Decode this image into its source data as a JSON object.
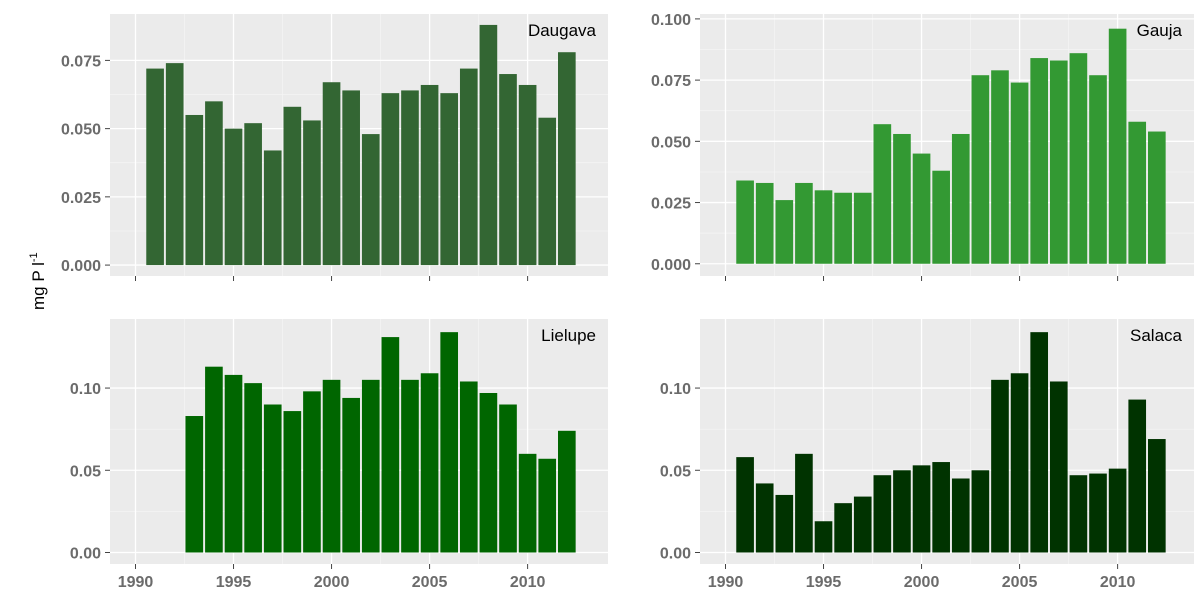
{
  "y_axis_label": {
    "main": "mg P l",
    "superscript": "-1"
  },
  "chart_data": [
    {
      "type": "bar",
      "title": "Daugava",
      "color": "#336633",
      "x": [
        1991,
        1992,
        1993,
        1994,
        1995,
        1996,
        1997,
        1998,
        1999,
        2000,
        2001,
        2002,
        2003,
        2004,
        2005,
        2006,
        2007,
        2008,
        2009,
        2010,
        2011,
        2012
      ],
      "values": [
        0.072,
        0.074,
        0.055,
        0.06,
        0.05,
        0.052,
        0.042,
        0.058,
        0.053,
        0.067,
        0.064,
        0.048,
        0.063,
        0.064,
        0.066,
        0.063,
        0.072,
        0.088,
        0.07,
        0.066,
        0.054,
        0.078
      ],
      "yticks": [
        "0.000",
        "0.025",
        "0.050",
        "0.075"
      ],
      "ytick_values": [
        0,
        0.025,
        0.05,
        0.075
      ],
      "ylim": [
        -0.004,
        0.092
      ],
      "xlim": [
        1988.7,
        2014.1
      ],
      "xticks": [
        1990,
        1995,
        2000,
        2005,
        2010
      ],
      "xtick_labels": []
    },
    {
      "type": "bar",
      "title": "Gauja",
      "color": "#339933",
      "x": [
        1991,
        1992,
        1993,
        1994,
        1995,
        1996,
        1997,
        1998,
        1999,
        2000,
        2001,
        2002,
        2003,
        2004,
        2005,
        2006,
        2007,
        2008,
        2009,
        2010,
        2011,
        2012
      ],
      "values": [
        0.034,
        0.033,
        0.026,
        0.033,
        0.03,
        0.029,
        0.029,
        0.057,
        0.053,
        0.045,
        0.038,
        0.053,
        0.077,
        0.079,
        0.074,
        0.084,
        0.083,
        0.086,
        0.077,
        0.096,
        0.058,
        0.054
      ],
      "yticks": [
        "0.000",
        "0.025",
        "0.050",
        "0.075",
        "0.100"
      ],
      "ytick_values": [
        0,
        0.025,
        0.05,
        0.075,
        0.1
      ],
      "ylim": [
        -0.005,
        0.102
      ],
      "xlim": [
        1988.7,
        2014.1
      ],
      "xticks": [
        1990,
        1995,
        2000,
        2005,
        2010
      ],
      "xtick_labels": []
    },
    {
      "type": "bar",
      "title": "Lielupe",
      "color": "#006600",
      "x": [
        1993,
        1994,
        1995,
        1996,
        1997,
        1998,
        1999,
        2000,
        2001,
        2002,
        2003,
        2004,
        2005,
        2006,
        2007,
        2008,
        2009,
        2010,
        2011,
        2012
      ],
      "values": [
        0.083,
        0.113,
        0.108,
        0.103,
        0.09,
        0.086,
        0.098,
        0.105,
        0.094,
        0.105,
        0.131,
        0.105,
        0.109,
        0.134,
        0.104,
        0.097,
        0.09,
        0.06,
        0.057,
        0.074
      ],
      "yticks": [
        "0.00",
        "0.05",
        "0.10"
      ],
      "ytick_values": [
        0,
        0.05,
        0.1
      ],
      "ylim": [
        -0.007,
        0.142
      ],
      "xlim": [
        1988.7,
        2014.1
      ],
      "xticks": [
        1990,
        1995,
        2000,
        2005,
        2010
      ],
      "xtick_labels": [
        "1990",
        "1995",
        "2000",
        "2005",
        "2010"
      ]
    },
    {
      "type": "bar",
      "title": "Salaca",
      "color": "#003300",
      "x": [
        1991,
        1992,
        1993,
        1994,
        1995,
        1996,
        1997,
        1998,
        1999,
        2000,
        2001,
        2002,
        2003,
        2004,
        2005,
        2006,
        2007,
        2008,
        2009,
        2010,
        2011,
        2012
      ],
      "values": [
        0.058,
        0.042,
        0.035,
        0.06,
        0.019,
        0.03,
        0.034,
        0.047,
        0.05,
        0.053,
        0.055,
        0.045,
        0.05,
        0.105,
        0.109,
        0.134,
        0.104,
        0.047,
        0.048,
        0.051,
        0.093,
        0.069
      ],
      "yticks": [
        "0.00",
        "0.05",
        "0.10"
      ],
      "ytick_values": [
        0,
        0.05,
        0.1
      ],
      "ylim": [
        -0.007,
        0.142
      ],
      "xlim": [
        1988.7,
        2014.1
      ],
      "xticks": [
        1990,
        1995,
        2000,
        2005,
        2010
      ],
      "xtick_labels": [
        "1990",
        "1995",
        "2000",
        "2005",
        "2010"
      ]
    }
  ]
}
